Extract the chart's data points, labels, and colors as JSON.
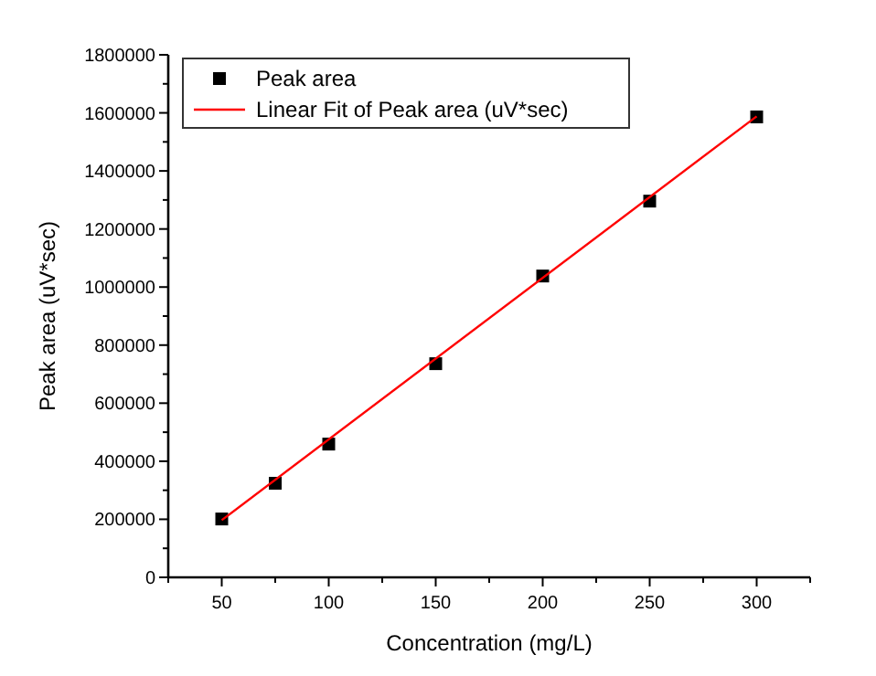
{
  "chart_data": {
    "type": "scatter",
    "xlabel": "Concentration (mg/L)",
    "ylabel": "Peak area (uV*sec)",
    "xlim": [
      25,
      325
    ],
    "xticks": [
      {
        "value": 25,
        "label": null
      },
      50,
      {
        "value": 75,
        "label": null
      },
      100,
      {
        "value": 125,
        "label": null
      },
      150,
      {
        "value": 175,
        "label": null
      },
      200,
      {
        "value": 225,
        "label": null
      },
      250,
      {
        "value": 275,
        "label": null
      },
      300,
      {
        "value": 325,
        "label": null
      }
    ],
    "ylim": [
      0,
      1800000
    ],
    "yticks": [
      0,
      {
        "value": 100000,
        "label": null
      },
      200000,
      {
        "value": 300000,
        "label": null
      },
      400000,
      {
        "value": 500000,
        "label": null
      },
      600000,
      {
        "value": 700000,
        "label": null
      },
      800000,
      {
        "value": 900000,
        "label": null
      },
      1000000,
      {
        "value": 1100000,
        "label": null
      },
      1200000,
      {
        "value": 1300000,
        "label": null
      },
      1400000,
      {
        "value": 1500000,
        "label": null
      },
      1600000,
      {
        "value": 1700000,
        "label": null
      },
      1800000
    ],
    "legend": "top left",
    "grid": false,
    "series": [
      {
        "name": "Peak area",
        "marker": "square",
        "color": "#000000",
        "x": [
          50,
          75,
          100,
          150,
          200,
          250,
          300
        ],
        "values": [
          201000,
          324000,
          459000,
          736000,
          1038000,
          1296000,
          1586000
        ]
      },
      {
        "name": "Linear Fit of Peak area (uV*sec)",
        "type": "line",
        "color": "#ff0000",
        "x": [
          50,
          300
        ],
        "values": [
          197000,
          1588000
        ]
      }
    ]
  }
}
